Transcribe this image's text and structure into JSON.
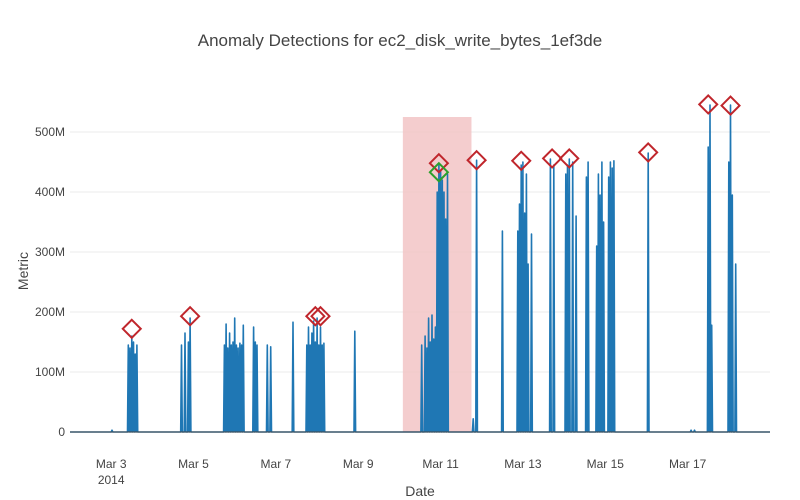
{
  "chart_data": {
    "type": "line",
    "title": "Anomaly Detections for ec2_disk_write_bytes_1ef3de",
    "xlabel": "Date",
    "ylabel": "Metric",
    "x_range": [
      "2014-03-02T00:00",
      "2014-03-19T00:00"
    ],
    "ylim": [
      0,
      570000000
    ],
    "grid": true,
    "x_ticks": [
      {
        "date": "2014-03-03",
        "label": "Mar 3",
        "sublabel": "2014"
      },
      {
        "date": "2014-03-05",
        "label": "Mar 5"
      },
      {
        "date": "2014-03-07",
        "label": "Mar 7"
      },
      {
        "date": "2014-03-09",
        "label": "Mar 9"
      },
      {
        "date": "2014-03-11",
        "label": "Mar 11"
      },
      {
        "date": "2014-03-13",
        "label": "Mar 13"
      },
      {
        "date": "2014-03-15",
        "label": "Mar 15"
      },
      {
        "date": "2014-03-17",
        "label": "Mar 17"
      }
    ],
    "y_ticks": [
      {
        "value": 0,
        "label": "0"
      },
      {
        "value": 100000000,
        "label": "100M"
      },
      {
        "value": 200000000,
        "label": "200M"
      },
      {
        "value": 300000000,
        "label": "300M"
      },
      {
        "value": 400000000,
        "label": "400M"
      },
      {
        "value": 500000000,
        "label": "500M"
      }
    ],
    "highlight_window": {
      "start": "2014-03-10T02:00",
      "end": "2014-03-11T18:00",
      "color": "#f2c4c6"
    },
    "series": [
      {
        "color": "#1f77b4",
        "spikes": [
          [
            "2014-03-03T00:30",
            3000000
          ],
          [
            "2014-03-03T10:00",
            145000000
          ],
          [
            "2014-03-03T11:00",
            140000000
          ],
          [
            "2014-03-03T12:00",
            160000000
          ],
          [
            "2014-03-03T13:00",
            150000000
          ],
          [
            "2014-03-03T14:00",
            130000000
          ],
          [
            "2014-03-03T15:00",
            145000000
          ],
          [
            "2014-03-04T17:00",
            145000000
          ],
          [
            "2014-03-04T19:00",
            165000000
          ],
          [
            "2014-03-04T21:00",
            150000000
          ],
          [
            "2014-03-04T22:00",
            190000000
          ],
          [
            "2014-03-05T18:00",
            145000000
          ],
          [
            "2014-03-05T19:00",
            180000000
          ],
          [
            "2014-03-05T20:00",
            140000000
          ],
          [
            "2014-03-05T21:00",
            165000000
          ],
          [
            "2014-03-05T22:00",
            145000000
          ],
          [
            "2014-03-05T23:00",
            150000000
          ],
          [
            "2014-03-06T00:00",
            190000000
          ],
          [
            "2014-03-06T01:00",
            145000000
          ],
          [
            "2014-03-06T02:00",
            140000000
          ],
          [
            "2014-03-06T03:00",
            148000000
          ],
          [
            "2014-03-06T04:00",
            145000000
          ],
          [
            "2014-03-06T05:00",
            178000000
          ],
          [
            "2014-03-06T11:00",
            175000000
          ],
          [
            "2014-03-06T12:00",
            150000000
          ],
          [
            "2014-03-06T13:00",
            145000000
          ],
          [
            "2014-03-06T19:00",
            145000000
          ],
          [
            "2014-03-06T21:00",
            142000000
          ],
          [
            "2014-03-07T10:00",
            183000000
          ],
          [
            "2014-03-07T18:00",
            145000000
          ],
          [
            "2014-03-07T19:00",
            175000000
          ],
          [
            "2014-03-07T20:00",
            145000000
          ],
          [
            "2014-03-07T21:00",
            165000000
          ],
          [
            "2014-03-07T22:00",
            185000000
          ],
          [
            "2014-03-07T23:00",
            150000000
          ],
          [
            "2014-03-08T00:00",
            190000000
          ],
          [
            "2014-03-08T01:00",
            145000000
          ],
          [
            "2014-03-08T02:00",
            175000000
          ],
          [
            "2014-03-08T03:00",
            145000000
          ],
          [
            "2014-03-08T04:00",
            148000000
          ],
          [
            "2014-03-08T22:00",
            168000000
          ],
          [
            "2014-03-10T13:00",
            145000000
          ],
          [
            "2014-03-10T15:00",
            160000000
          ],
          [
            "2014-03-10T16:00",
            140000000
          ],
          [
            "2014-03-10T17:00",
            190000000
          ],
          [
            "2014-03-10T18:00",
            150000000
          ],
          [
            "2014-03-10T19:00",
            195000000
          ],
          [
            "2014-03-10T20:00",
            155000000
          ],
          [
            "2014-03-10T21:00",
            175000000
          ],
          [
            "2014-03-10T22:00",
            400000000
          ],
          [
            "2014-03-10T23:00",
            445000000
          ],
          [
            "2014-03-11T00:00",
            435000000
          ],
          [
            "2014-03-11T01:00",
            420000000
          ],
          [
            "2014-03-11T02:00",
            400000000
          ],
          [
            "2014-03-11T03:00",
            355000000
          ],
          [
            "2014-03-11T04:00",
            430000000
          ],
          [
            "2014-03-11T19:00",
            22000000
          ],
          [
            "2014-03-11T21:00",
            453000000
          ],
          [
            "2014-03-12T12:00",
            335000000
          ],
          [
            "2014-03-12T21:00",
            335000000
          ],
          [
            "2014-03-12T22:00",
            380000000
          ],
          [
            "2014-03-12T23:00",
            445000000
          ],
          [
            "2014-03-13T00:00",
            450000000
          ],
          [
            "2014-03-13T01:00",
            365000000
          ],
          [
            "2014-03-13T02:00",
            430000000
          ],
          [
            "2014-03-13T03:00",
            280000000
          ],
          [
            "2014-03-13T05:00",
            330000000
          ],
          [
            "2014-03-13T16:00",
            455000000
          ],
          [
            "2014-03-13T18:00",
            445000000
          ],
          [
            "2014-03-14T01:00",
            430000000
          ],
          [
            "2014-03-14T02:00",
            445000000
          ],
          [
            "2014-03-14T03:00",
            455000000
          ],
          [
            "2014-03-14T05:00",
            450000000
          ],
          [
            "2014-03-14T07:00",
            360000000
          ],
          [
            "2014-03-14T13:00",
            425000000
          ],
          [
            "2014-03-14T14:00",
            450000000
          ],
          [
            "2014-03-14T19:00",
            310000000
          ],
          [
            "2014-03-14T20:00",
            430000000
          ],
          [
            "2014-03-14T21:00",
            395000000
          ],
          [
            "2014-03-14T22:00",
            450000000
          ],
          [
            "2014-03-14T23:00",
            350000000
          ],
          [
            "2014-03-15T02:00",
            425000000
          ],
          [
            "2014-03-15T03:00",
            450000000
          ],
          [
            "2014-03-15T04:00",
            440000000
          ],
          [
            "2014-03-15T05:00",
            452000000
          ],
          [
            "2014-03-16T01:00",
            465000000
          ],
          [
            "2014-03-17T02:00",
            3000000
          ],
          [
            "2014-03-17T04:00",
            3000000
          ],
          [
            "2014-03-17T12:00",
            475000000
          ],
          [
            "2014-03-17T13:00",
            545000000
          ],
          [
            "2014-03-17T14:00",
            178000000
          ],
          [
            "2014-03-18T00:00",
            450000000
          ],
          [
            "2014-03-18T01:00",
            545000000
          ],
          [
            "2014-03-18T02:00",
            395000000
          ],
          [
            "2014-03-18T04:00",
            280000000
          ]
        ]
      }
    ],
    "markers": [
      {
        "x": "2014-03-03T12:00",
        "y": 172000000,
        "color": "#c0262c"
      },
      {
        "x": "2014-03-04T22:00",
        "y": 193000000,
        "color": "#c0262c"
      },
      {
        "x": "2014-03-07T23:00",
        "y": 193000000,
        "color": "#c0262c"
      },
      {
        "x": "2014-03-08T02:00",
        "y": 193000000,
        "color": "#c0262c"
      },
      {
        "x": "2014-03-10T23:00",
        "y": 448000000,
        "color": "#c0262c"
      },
      {
        "x": "2014-03-10T23:00",
        "y": 433000000,
        "color": "#2ca02c"
      },
      {
        "x": "2014-03-11T21:00",
        "y": 453000000,
        "color": "#c0262c"
      },
      {
        "x": "2014-03-12T23:00",
        "y": 452000000,
        "color": "#c0262c"
      },
      {
        "x": "2014-03-13T17:00",
        "y": 456000000,
        "color": "#c0262c"
      },
      {
        "x": "2014-03-14T03:00",
        "y": 456000000,
        "color": "#c0262c"
      },
      {
        "x": "2014-03-16T01:00",
        "y": 466000000,
        "color": "#c0262c"
      },
      {
        "x": "2014-03-17T12:00",
        "y": 546000000,
        "color": "#c0262c"
      },
      {
        "x": "2014-03-18T01:00",
        "y": 544000000,
        "color": "#c0262c"
      }
    ]
  }
}
